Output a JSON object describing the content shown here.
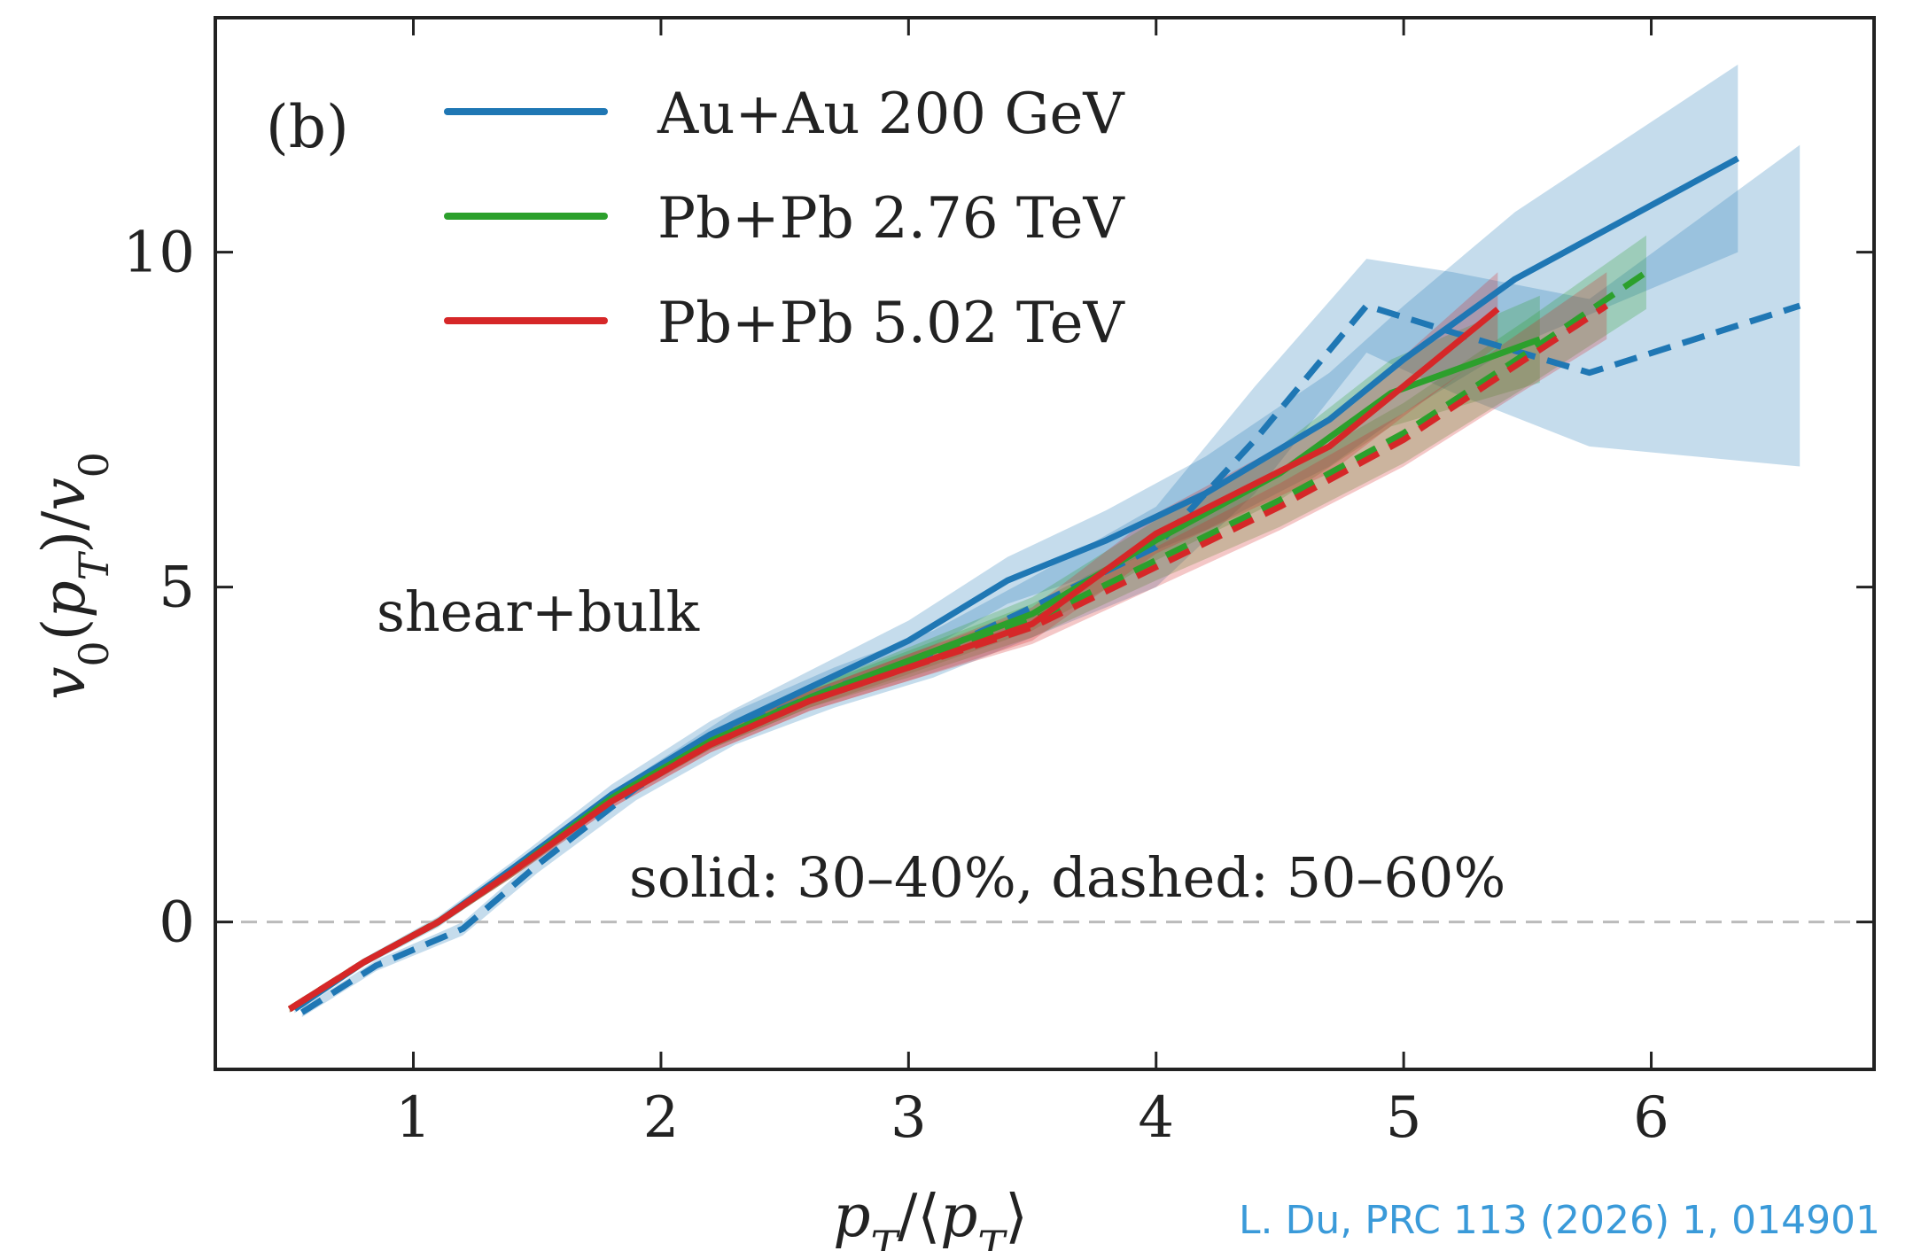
{
  "chart_data": {
    "type": "line",
    "panel_label": "(b)",
    "xlabel": "p_T/⟨p_T⟩",
    "ylabel": "v_0(p_T)/v_0",
    "xlim": [
      0.2,
      6.9
    ],
    "ylim": [
      -2.2,
      13.5
    ],
    "xticks": [
      1,
      2,
      3,
      4,
      5,
      6
    ],
    "yticks": [
      0,
      5,
      10
    ],
    "reference_line": {
      "y": 0,
      "style": "dashed",
      "color": "#bbbbbb"
    },
    "annotations": {
      "model": "shear+bulk",
      "line_styles": "solid: 30–40%, dashed: 50–60%"
    },
    "legend": {
      "placement": "top-left",
      "entries": [
        {
          "label": "Au+Au 200 GeV",
          "color": "#1f77b4"
        },
        {
          "label": "Pb+Pb 2.76 TeV",
          "color": "#2ca02c"
        },
        {
          "label": "Pb+Pb 5.02 TeV",
          "color": "#d62728"
        }
      ]
    },
    "series": [
      {
        "system": "Au+Au 200 GeV",
        "color": "#1f77b4",
        "style": "solid",
        "x": [
          0.52,
          0.8,
          1.1,
          1.4,
          1.8,
          2.2,
          2.6,
          3.0,
          3.4,
          3.8,
          4.2,
          4.7,
          5.0,
          5.45,
          6.35
        ],
        "y": [
          -1.3,
          -0.6,
          0.0,
          0.8,
          1.9,
          2.8,
          3.5,
          4.2,
          5.1,
          5.7,
          6.4,
          7.5,
          8.4,
          9.6,
          11.4
        ],
        "band": [
          0.06,
          0.06,
          0.08,
          0.1,
          0.15,
          0.2,
          0.25,
          0.3,
          0.35,
          0.45,
          0.55,
          0.7,
          0.8,
          1.0,
          1.4
        ]
      },
      {
        "system": "Au+Au 200 GeV",
        "color": "#1f77b4",
        "style": "dashed",
        "x": [
          0.55,
          0.85,
          1.2,
          1.5,
          1.9,
          2.3,
          2.7,
          3.1,
          3.5,
          4.0,
          4.4,
          4.85,
          5.2,
          5.75,
          6.6
        ],
        "y": [
          -1.35,
          -0.65,
          -0.1,
          0.85,
          2.0,
          2.9,
          3.5,
          4.0,
          4.7,
          5.6,
          7.2,
          9.2,
          8.8,
          8.2,
          9.2
        ],
        "band": [
          0.07,
          0.08,
          0.1,
          0.12,
          0.18,
          0.25,
          0.3,
          0.35,
          0.45,
          0.6,
          0.8,
          0.7,
          0.9,
          1.1,
          2.4
        ]
      },
      {
        "system": "Pb+Pb 2.76 TeV",
        "color": "#2ca02c",
        "style": "solid",
        "x": [
          0.5,
          0.8,
          1.1,
          1.4,
          1.8,
          2.2,
          2.6,
          3.0,
          3.5,
          4.0,
          4.5,
          4.95,
          5.55
        ],
        "y": [
          -1.3,
          -0.6,
          0.0,
          0.75,
          1.85,
          2.7,
          3.35,
          3.9,
          4.6,
          5.7,
          6.7,
          7.9,
          8.7
        ],
        "band": [
          0.05,
          0.05,
          0.06,
          0.08,
          0.1,
          0.12,
          0.15,
          0.2,
          0.25,
          0.3,
          0.4,
          0.5,
          0.65
        ]
      },
      {
        "system": "Pb+Pb 2.76 TeV",
        "color": "#2ca02c",
        "style": "dashed",
        "x": [
          0.5,
          0.8,
          1.1,
          1.4,
          1.8,
          2.2,
          2.6,
          3.0,
          3.5,
          4.0,
          4.5,
          5.0,
          5.5,
          5.98
        ],
        "y": [
          -1.3,
          -0.6,
          0.0,
          0.75,
          1.85,
          2.7,
          3.35,
          3.85,
          4.5,
          5.4,
          6.3,
          7.3,
          8.5,
          9.7
        ],
        "band": [
          0.05,
          0.05,
          0.06,
          0.08,
          0.1,
          0.12,
          0.15,
          0.2,
          0.25,
          0.3,
          0.4,
          0.45,
          0.5,
          0.55
        ]
      },
      {
        "system": "Pb+Pb 5.02 TeV",
        "color": "#d62728",
        "style": "solid",
        "x": [
          0.5,
          0.8,
          1.1,
          1.4,
          1.8,
          2.2,
          2.6,
          3.0,
          3.5,
          4.0,
          4.35,
          4.7,
          5.0,
          5.38
        ],
        "y": [
          -1.3,
          -0.6,
          0.0,
          0.75,
          1.8,
          2.65,
          3.3,
          3.8,
          4.45,
          5.8,
          6.45,
          7.1,
          8.0,
          9.15
        ],
        "band": [
          0.05,
          0.05,
          0.06,
          0.08,
          0.1,
          0.12,
          0.15,
          0.2,
          0.25,
          0.3,
          0.35,
          0.4,
          0.45,
          0.55
        ]
      },
      {
        "system": "Pb+Pb 5.02 TeV",
        "color": "#d62728",
        "style": "dashed",
        "x": [
          0.5,
          0.8,
          1.1,
          1.4,
          1.8,
          2.2,
          2.6,
          3.0,
          3.5,
          4.0,
          4.5,
          5.0,
          5.45,
          5.82
        ],
        "y": [
          -1.3,
          -0.6,
          0.0,
          0.75,
          1.8,
          2.65,
          3.3,
          3.8,
          4.4,
          5.3,
          6.2,
          7.2,
          8.3,
          9.2
        ],
        "band": [
          0.05,
          0.05,
          0.06,
          0.08,
          0.1,
          0.12,
          0.15,
          0.2,
          0.25,
          0.3,
          0.35,
          0.4,
          0.45,
          0.5
        ]
      }
    ]
  },
  "citation": "L. Du, PRC 113 (2026) 1, 014901"
}
